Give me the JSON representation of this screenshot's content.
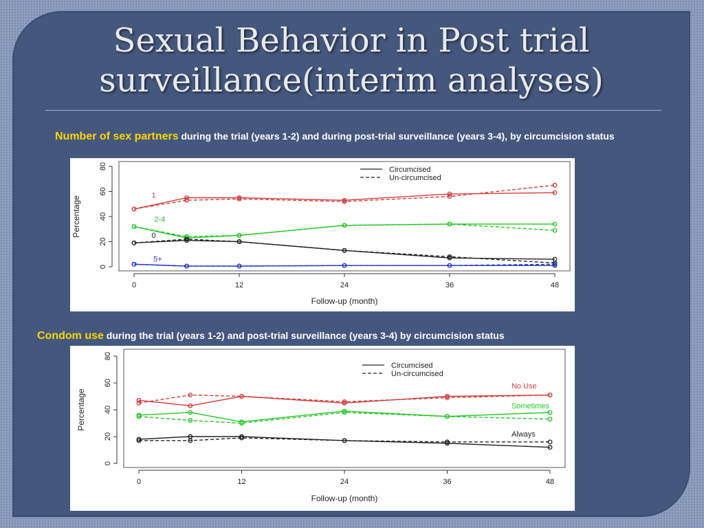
{
  "slide": {
    "title_line1": "Sexual Behavior in Post trial",
    "title_line2": "surveillance(interim analyses)"
  },
  "captions": {
    "c1_highlight": "Number of sex partners",
    "c1_rest": " during the trial (years 1-2) and during post-trial surveillance (years 3-4), by circumcision status",
    "c2_highlight": "Condom use",
    "c2_rest": " during the trial (years 1-2) and post-trial surveillance (years 3-4) by circumcision status"
  },
  "chart_data": [
    {
      "type": "line",
      "xlabel": "Follow-up (month)",
      "ylabel": "Percentage",
      "xlim": [
        0,
        48
      ],
      "ylim": [
        0,
        80
      ],
      "xticks": [
        0,
        12,
        24,
        36,
        48
      ],
      "yticks": [
        0,
        20,
        40,
        60,
        80
      ],
      "legend_position": "top-right",
      "legend": [
        {
          "label": "Circumcised",
          "style": "solid"
        },
        {
          "label": "Un-circumcised",
          "style": "dashed"
        }
      ],
      "x": [
        0,
        6,
        12,
        24,
        36,
        48
      ],
      "series": [
        {
          "name": "1",
          "group": "Circumcised",
          "color": "#d33a3a",
          "dashed": false,
          "values": [
            46,
            55,
            55,
            53,
            58,
            59
          ]
        },
        {
          "name": "1",
          "group": "Un-circumcised",
          "color": "#d33a3a",
          "dashed": true,
          "values": [
            46,
            53,
            54,
            52,
            56,
            65
          ]
        },
        {
          "name": "2-4",
          "group": "Circumcised",
          "color": "#22c722",
          "dashed": false,
          "values": [
            32,
            23,
            25,
            33,
            34,
            34
          ]
        },
        {
          "name": "2-4",
          "group": "Un-circumcised",
          "color": "#22c722",
          "dashed": true,
          "values": [
            32,
            24,
            25,
            33,
            34,
            29
          ]
        },
        {
          "name": "0",
          "group": "Circumcised",
          "color": "#222222",
          "dashed": false,
          "values": [
            19,
            21,
            20,
            13,
            7,
            6
          ]
        },
        {
          "name": "0",
          "group": "Un-circumcised",
          "color": "#222222",
          "dashed": true,
          "values": [
            19,
            22,
            20,
            13,
            8,
            3
          ]
        },
        {
          "name": "5+",
          "group": "Circumcised",
          "color": "#2233cc",
          "dashed": false,
          "values": [
            2,
            0.5,
            0.5,
            1,
            1,
            1
          ]
        },
        {
          "name": "5+",
          "group": "Un-circumcised",
          "color": "#2233cc",
          "dashed": true,
          "values": [
            2,
            0.5,
            0.5,
            1,
            1,
            2
          ]
        }
      ],
      "annotations": [
        {
          "text": "1",
          "color": "#d33a3a",
          "x": 2,
          "y": 55
        },
        {
          "text": "2-4",
          "color": "#22c722",
          "x": 2.3,
          "y": 36
        },
        {
          "text": "0",
          "color": "#222222",
          "x": 2,
          "y": 23
        },
        {
          "text": "5+",
          "color": "#2233cc",
          "x": 2.2,
          "y": 4
        }
      ]
    },
    {
      "type": "line",
      "xlabel": "Follow-up (month)",
      "ylabel": "Percentage",
      "xlim": [
        0,
        48
      ],
      "ylim": [
        0,
        80
      ],
      "xticks": [
        0,
        12,
        24,
        36,
        48
      ],
      "yticks": [
        0,
        20,
        40,
        60,
        80
      ],
      "legend_position": "top-right",
      "legend": [
        {
          "label": "Circumcised",
          "style": "solid"
        },
        {
          "label": "Un-circumcised",
          "style": "dashed"
        }
      ],
      "x": [
        0,
        6,
        12,
        24,
        36,
        48
      ],
      "series": [
        {
          "name": "No Use",
          "group": "Circumcised",
          "color": "#d33a3a",
          "dashed": false,
          "values": [
            47,
            43,
            50,
            45,
            50,
            51
          ]
        },
        {
          "name": "No Use",
          "group": "Un-circumcised",
          "color": "#d33a3a",
          "dashed": true,
          "values": [
            45,
            51,
            50,
            46,
            49,
            51
          ]
        },
        {
          "name": "Sometimes",
          "group": "Circumcised",
          "color": "#22c722",
          "dashed": false,
          "values": [
            36,
            38,
            31,
            39,
            35,
            38
          ]
        },
        {
          "name": "Sometimes",
          "group": "Un-circumcised",
          "color": "#22c722",
          "dashed": true,
          "values": [
            35,
            32,
            30,
            38,
            35,
            33
          ]
        },
        {
          "name": "Always",
          "group": "Circumcised",
          "color": "#222222",
          "dashed": false,
          "values": [
            18,
            20,
            20,
            17,
            15,
            12
          ]
        },
        {
          "name": "Always",
          "group": "Un-circumcised",
          "color": "#222222",
          "dashed": true,
          "values": [
            17,
            17,
            19,
            17,
            16,
            16
          ]
        }
      ],
      "annotations": [
        {
          "text": "No Use",
          "color": "#d33a3a",
          "x": 43.5,
          "y": 56
        },
        {
          "text": "Sometimes",
          "color": "#22c722",
          "x": 43.5,
          "y": 41
        },
        {
          "text": "Always",
          "color": "#222222",
          "x": 43.5,
          "y": 20
        }
      ]
    }
  ]
}
